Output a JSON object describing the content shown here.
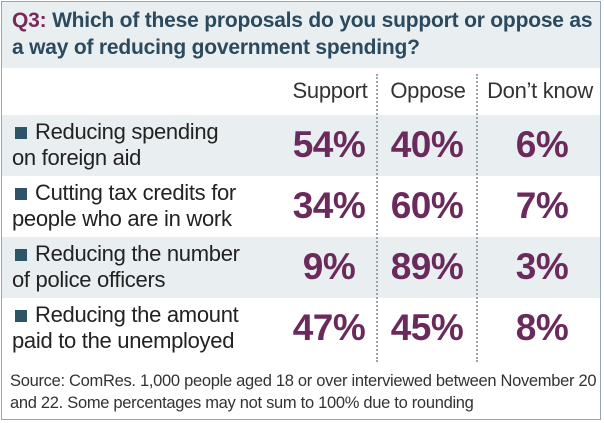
{
  "question": {
    "number": "Q3:",
    "text": "Which of these proposals do you support or oppose as a way of reducing government spending?"
  },
  "chart_data": {
    "type": "table",
    "title": "Q3: Which of these proposals do you support or oppose as a way of reducing government spending?",
    "columns": [
      "Support",
      "Oppose",
      "Don’t know"
    ],
    "rows": [
      {
        "label_line1": "Reducing spending",
        "label_line2": "on foreign aid",
        "values": [
          "54%",
          "40%",
          "6%"
        ]
      },
      {
        "label_line1": "Cutting tax credits for",
        "label_line2": "people who are in work",
        "values": [
          "34%",
          "60%",
          "7%"
        ]
      },
      {
        "label_line1": "Reducing the number",
        "label_line2": "of police officers",
        "values": [
          "9%",
          "89%",
          "3%"
        ]
      },
      {
        "label_line1": "Reducing the amount",
        "label_line2": "paid to the unemployed",
        "values": [
          "47%",
          "45%",
          "8%"
        ]
      }
    ]
  },
  "source": "Source: ComRes. 1,000 people aged 18 or over interviewed between November 20 and 22. Some percentages may not sum to 100% due to rounding",
  "colors": {
    "header_bg": "#e9eef1",
    "header_text": "#2b4a5e",
    "value_text": "#6b2a5c",
    "bullet": "#2d5566"
  }
}
